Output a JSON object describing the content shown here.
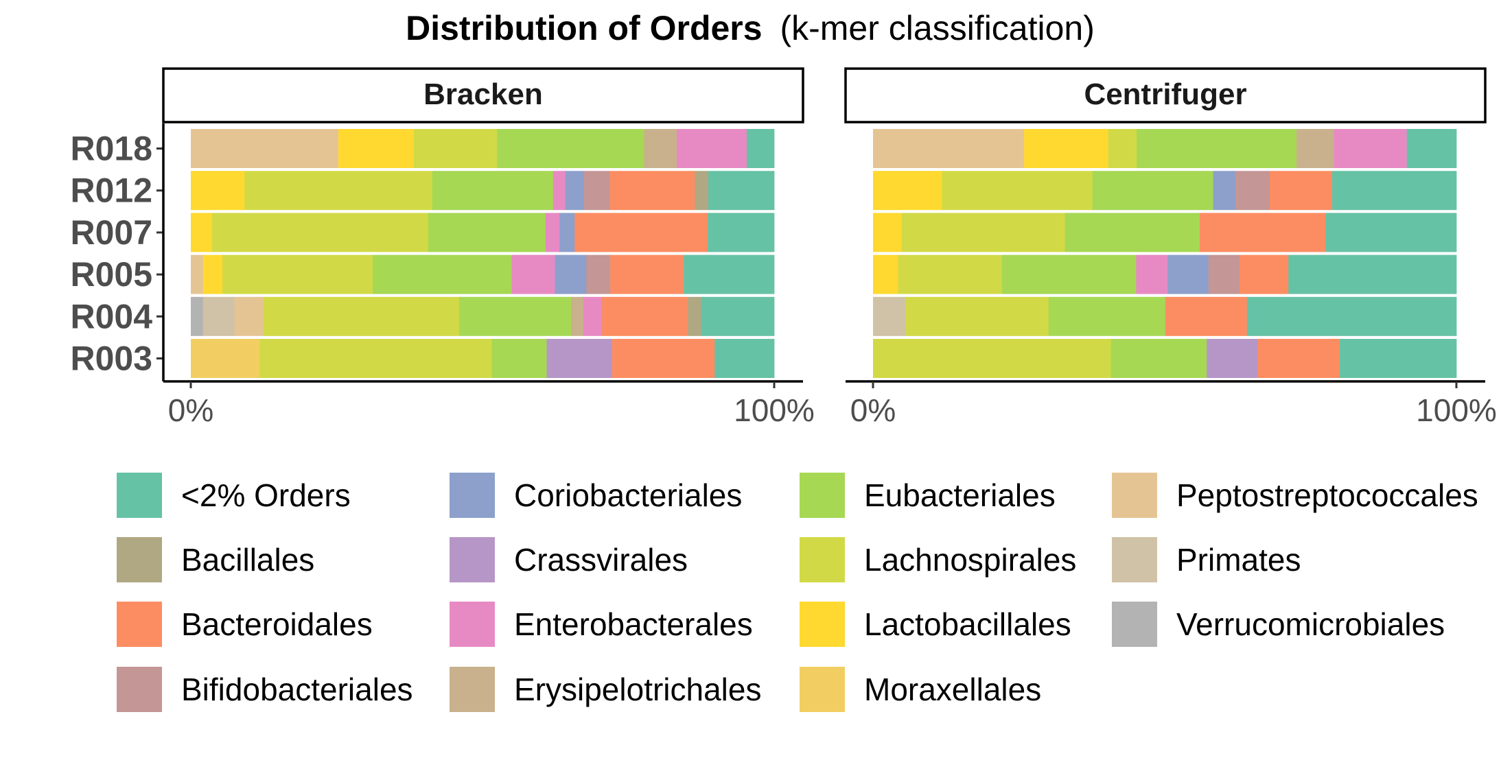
{
  "title": {
    "bold": "Distribution of Orders",
    "rest": "(k-mer classification)"
  },
  "orders": [
    {
      "name": "<2% Orders",
      "color": "#66C2A5"
    },
    {
      "name": "Bacillales",
      "color": "#B0A882"
    },
    {
      "name": "Bacteroidales",
      "color": "#FC8D62"
    },
    {
      "name": "Bifidobacteriales",
      "color": "#C49696"
    },
    {
      "name": "Coriobacteriales",
      "color": "#8DA0CB"
    },
    {
      "name": "Crassvirales",
      "color": "#B696C7"
    },
    {
      "name": "Enterobacterales",
      "color": "#E78AC3"
    },
    {
      "name": "Erysipelotrichales",
      "color": "#C8B18C"
    },
    {
      "name": "Eubacteriales",
      "color": "#A6D854"
    },
    {
      "name": "Lachnospirales",
      "color": "#D1DA46"
    },
    {
      "name": "Lactobacillales",
      "color": "#FFD92F"
    },
    {
      "name": "Moraxellales",
      "color": "#F2CE62"
    },
    {
      "name": "Peptostreptococcales",
      "color": "#E5C494"
    },
    {
      "name": "Primates",
      "color": "#D0C2A6"
    },
    {
      "name": "Verrucomicrobiales",
      "color": "#B3B3B3"
    }
  ],
  "chart_data": {
    "type": "bar",
    "orientation": "horizontal",
    "stacked": "percent",
    "samples": [
      "R018",
      "R012",
      "R007",
      "R005",
      "R004",
      "R003"
    ],
    "xlim": [
      0,
      100
    ],
    "x_ticks": [
      "0%",
      "100%"
    ],
    "legend_position": "bottom",
    "grid": false,
    "panels": [
      {
        "name": "Bracken",
        "bars": {
          "R018": [
            [
              "Peptostreptococcales",
              25.3
            ],
            [
              "Lactobacillales",
              12.9
            ],
            [
              "Lachnospirales",
              14.3
            ],
            [
              "Eubacteriales",
              25.2
            ],
            [
              "Erysipelotrichales",
              5.6
            ],
            [
              "Enterobacterales",
              12.0
            ],
            [
              "<2% Orders",
              4.7
            ]
          ],
          "R012": [
            [
              "Lactobacillales",
              9.2
            ],
            [
              "Lachnospirales",
              32.2
            ],
            [
              "Eubacteriales",
              20.7
            ],
            [
              "Enterobacterales",
              2.1
            ],
            [
              "Coriobacteriales",
              3.2
            ],
            [
              "Bifidobacteriales",
              4.4
            ],
            [
              "Bacteroidales",
              14.6
            ],
            [
              "Bacillales",
              2.3
            ],
            [
              "<2% Orders",
              11.3
            ]
          ],
          "R007": [
            [
              "Lactobacillales",
              3.6
            ],
            [
              "Lachnospirales",
              37.1
            ],
            [
              "Eubacteriales",
              20.1
            ],
            [
              "Enterobacterales",
              2.4
            ],
            [
              "Coriobacteriales",
              2.6
            ],
            [
              "Bacteroidales",
              22.8
            ],
            [
              "<2% Orders",
              11.4
            ]
          ],
          "R005": [
            [
              "Peptostreptococcales",
              2.1
            ],
            [
              "Lactobacillales",
              3.3
            ],
            [
              "Lachnospirales",
              25.8
            ],
            [
              "Eubacteriales",
              23.8
            ],
            [
              "Enterobacterales",
              7.4
            ],
            [
              "Coriobacteriales",
              5.4
            ],
            [
              "Bifidobacteriales",
              4.1
            ],
            [
              "Bacteroidales",
              12.6
            ],
            [
              "<2% Orders",
              15.5
            ]
          ],
          "R004": [
            [
              "Verrucomicrobiales",
              2.1
            ],
            [
              "Primates",
              5.4
            ],
            [
              "Peptostreptococcales",
              4.9
            ],
            [
              "Lachnospirales",
              33.6
            ],
            [
              "Eubacteriales",
              19.2
            ],
            [
              "Erysipelotrichales",
              2.1
            ],
            [
              "Enterobacterales",
              3.1
            ],
            [
              "Bacteroidales",
              14.8
            ],
            [
              "Bacillales",
              2.3
            ],
            [
              "<2% Orders",
              12.5
            ]
          ],
          "R003": [
            [
              "Moraxellales",
              11.8
            ],
            [
              "Lachnospirales",
              39.8
            ],
            [
              "Eubacteriales",
              9.4
            ],
            [
              "Crassvirales",
              11.2
            ],
            [
              "Bacteroidales",
              17.6
            ],
            [
              "<2% Orders",
              10.2
            ]
          ]
        }
      },
      {
        "name": "Centrifuger",
        "bars": {
          "R018": [
            [
              "Peptostreptococcales",
              25.9
            ],
            [
              "Lactobacillales",
              14.4
            ],
            [
              "Lachnospirales",
              4.9
            ],
            [
              "Eubacteriales",
              27.4
            ],
            [
              "Erysipelotrichales",
              6.4
            ],
            [
              "Enterobacterales",
              12.5
            ],
            [
              "<2% Orders",
              8.5
            ]
          ],
          "R012": [
            [
              "Lactobacillales",
              11.8
            ],
            [
              "Lachnospirales",
              25.8
            ],
            [
              "Eubacteriales",
              20.7
            ],
            [
              "Coriobacteriales",
              3.8
            ],
            [
              "Bifidobacteriales",
              5.9
            ],
            [
              "Bacteroidales",
              10.7
            ],
            [
              "<2% Orders",
              21.3
            ]
          ],
          "R007": [
            [
              "Lactobacillales",
              4.9
            ],
            [
              "Lachnospirales",
              28.0
            ],
            [
              "Eubacteriales",
              23.1
            ],
            [
              "Bacteroidales",
              21.6
            ],
            [
              "<2% Orders",
              22.4
            ]
          ],
          "R005": [
            [
              "Lactobacillales",
              4.3
            ],
            [
              "Lachnospirales",
              17.8
            ],
            [
              "Eubacteriales",
              23.0
            ],
            [
              "Enterobacterales",
              5.4
            ],
            [
              "Coriobacteriales",
              7.0
            ],
            [
              "Bifidobacteriales",
              5.3
            ],
            [
              "Bacteroidales",
              8.4
            ],
            [
              "<2% Orders",
              28.8
            ]
          ],
          "R004": [
            [
              "Primates",
              5.6
            ],
            [
              "Lachnospirales",
              24.5
            ],
            [
              "Eubacteriales",
              20.0
            ],
            [
              "Bacteroidales",
              14.0
            ],
            [
              "<2% Orders",
              35.9
            ]
          ],
          "R003": [
            [
              "Lachnospirales",
              40.8
            ],
            [
              "Eubacteriales",
              16.4
            ],
            [
              "Crassvirales",
              8.7
            ],
            [
              "Bacteroidales",
              14.1
            ],
            [
              "<2% Orders",
              20.0
            ]
          ]
        }
      }
    ]
  }
}
